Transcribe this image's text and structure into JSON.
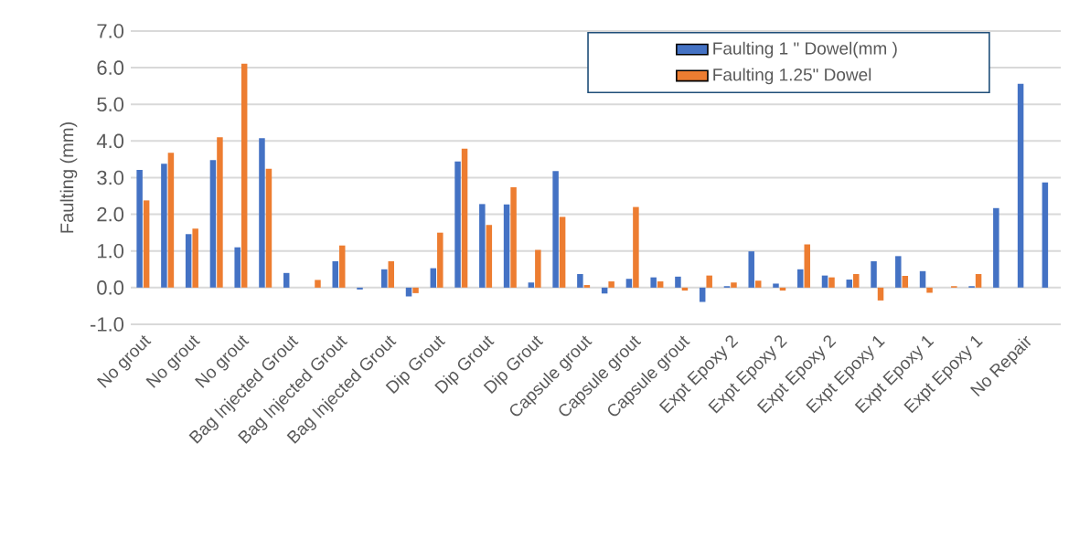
{
  "chart_data": {
    "type": "bar",
    "ylabel": "Faulting (mm)",
    "categories": [
      "No grout",
      null,
      "No grout",
      null,
      "No grout",
      null,
      "Bag Injected Grout",
      null,
      "Bag Injected Grout",
      null,
      "Bag Injected Grout",
      null,
      "Dip Grout",
      null,
      "Dip Grout",
      null,
      "Dip Grout",
      null,
      "Capsule grout",
      null,
      "Capsule grout",
      null,
      "Capsule grout",
      null,
      "Expt Epoxy 2",
      null,
      "Expt Epoxy 2",
      null,
      "Expt Epoxy 2",
      null,
      "Expt Epoxy 1",
      null,
      "Expt Epoxy 1",
      null,
      "Expt Epoxy 1",
      null,
      "No Repair",
      null
    ],
    "series": [
      {
        "name": "Faulting  1 \" Dowel(mm )",
        "color": "#4472c4",
        "values": [
          3.21,
          3.38,
          1.46,
          3.48,
          1.1,
          4.08,
          0.4,
          null,
          0.72,
          -0.05,
          0.5,
          -0.24,
          0.53,
          3.44,
          2.28,
          2.27,
          0.14,
          3.18,
          0.37,
          -0.16,
          0.24,
          0.28,
          0.3,
          -0.39,
          0.04,
          0.99,
          0.11,
          0.5,
          0.33,
          0.22,
          0.72,
          0.86,
          0.45,
          null,
          0.04,
          2.17,
          5.56,
          2.87
        ]
      },
      {
        "name": "Faulting 1.25\" Dowel",
        "color": "#ed7d31",
        "values": [
          2.38,
          3.68,
          1.61,
          4.1,
          6.11,
          3.24,
          null,
          0.21,
          1.15,
          null,
          0.72,
          -0.15,
          1.5,
          3.79,
          1.71,
          2.74,
          1.03,
          1.93,
          0.07,
          0.17,
          2.2,
          0.17,
          -0.08,
          0.33,
          0.14,
          0.19,
          -0.08,
          1.18,
          0.28,
          0.37,
          -0.35,
          0.32,
          -0.14,
          0.04,
          0.37,
          null,
          null,
          null
        ]
      }
    ],
    "ylim": [
      -1,
      7
    ],
    "yticks": [
      {
        "value": -1,
        "label": "-1.0"
      },
      {
        "value": 0,
        "label": "0.0"
      },
      {
        "value": 1,
        "label": "1.0"
      },
      {
        "value": 2,
        "label": "2.0"
      },
      {
        "value": 3,
        "label": "3.0"
      },
      {
        "value": 4,
        "label": "4.0"
      },
      {
        "value": 5,
        "label": "5.0"
      },
      {
        "value": 6,
        "label": "6.0"
      },
      {
        "value": 7,
        "label": "7.0"
      }
    ],
    "grid": "y",
    "legend": "top right"
  }
}
